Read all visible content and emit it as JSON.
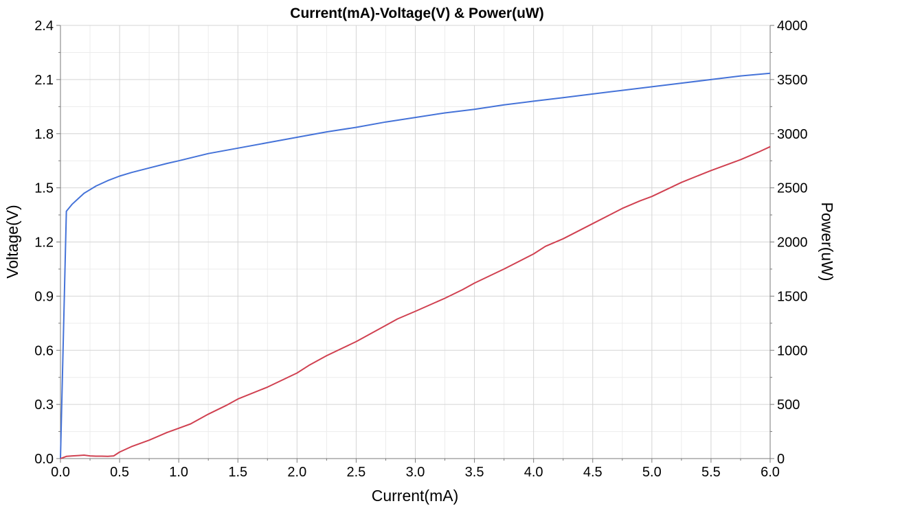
{
  "chart_data": {
    "type": "line",
    "title": "Current(mA)-Voltage(V) & Power(uW)",
    "xlabel": "Current(mA)",
    "ylabel": "Voltage(V)",
    "y2label": "Power(uW)",
    "xlim": [
      0,
      6
    ],
    "ylim": [
      0,
      2.4
    ],
    "y2lim": [
      0,
      4000
    ],
    "x_ticks": [
      "0.0",
      "0.5",
      "1.0",
      "1.5",
      "2.0",
      "2.5",
      "3.0",
      "3.5",
      "4.0",
      "4.5",
      "5.0",
      "5.5",
      "6.0"
    ],
    "y_ticks": [
      "0.0",
      "0.3",
      "0.6",
      "0.9",
      "1.2",
      "1.5",
      "1.8",
      "2.1",
      "2.4"
    ],
    "y2_ticks": [
      "0",
      "500",
      "1000",
      "1500",
      "2000",
      "2500",
      "3000",
      "3500",
      "4000"
    ],
    "grid": true,
    "legend": "none",
    "series": [
      {
        "axis": "left",
        "color": "#4472d8",
        "x": [
          0,
          0.05,
          0.1,
          0.15,
          0.2,
          0.25,
          0.3,
          0.4,
          0.5,
          0.6,
          0.75,
          0.9,
          1.0,
          1.25,
          1.5,
          1.75,
          2.0,
          2.25,
          2.5,
          2.75,
          3.0,
          3.25,
          3.5,
          3.75,
          4.0,
          4.25,
          4.5,
          4.75,
          5.0,
          5.25,
          5.5,
          5.75,
          6.0
        ],
        "y": [
          0.0,
          1.37,
          1.41,
          1.44,
          1.47,
          1.49,
          1.51,
          1.54,
          1.565,
          1.585,
          1.61,
          1.635,
          1.65,
          1.69,
          1.72,
          1.75,
          1.78,
          1.81,
          1.835,
          1.865,
          1.89,
          1.915,
          1.935,
          1.96,
          1.98,
          2.0,
          2.02,
          2.04,
          2.06,
          2.08,
          2.1,
          2.12,
          2.135
        ]
      },
      {
        "axis": "right",
        "color": "#d04050",
        "x": [
          0,
          0.05,
          0.1,
          0.15,
          0.2,
          0.25,
          0.3,
          0.35,
          0.4,
          0.45,
          0.5,
          0.6,
          0.75,
          0.9,
          1.0,
          1.1,
          1.25,
          1.4,
          1.5,
          1.75,
          2.0,
          2.1,
          2.25,
          2.5,
          2.75,
          2.85,
          3.0,
          3.25,
          3.4,
          3.5,
          3.75,
          4.0,
          4.1,
          4.25,
          4.5,
          4.75,
          4.9,
          5.0,
          5.25,
          5.5,
          5.75,
          5.9,
          6.0
        ],
        "y": [
          0,
          20,
          25,
          28,
          32,
          25,
          22,
          22,
          20,
          25,
          60,
          110,
          170,
          240,
          280,
          320,
          410,
          490,
          550,
          660,
          790,
          860,
          950,
          1080,
          1230,
          1290,
          1360,
          1480,
          1560,
          1620,
          1750,
          1890,
          1960,
          2030,
          2170,
          2310,
          2380,
          2420,
          2550,
          2660,
          2760,
          2830,
          2880
        ]
      }
    ]
  }
}
